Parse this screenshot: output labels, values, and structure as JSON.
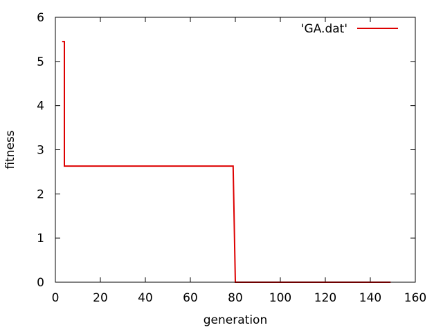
{
  "chart_data": {
    "type": "line",
    "title": "",
    "xlabel": "generation",
    "ylabel": "fitness",
    "xlim": [
      0,
      160
    ],
    "ylim": [
      0,
      6
    ],
    "xticks": [
      0,
      20,
      40,
      60,
      80,
      100,
      120,
      140,
      160
    ],
    "yticks": [
      0,
      1,
      2,
      3,
      4,
      5,
      6
    ],
    "grid": false,
    "legend_position": "top-right",
    "line_style": "steps",
    "series": [
      {
        "name": "'GA.dat'",
        "color": "#dd0000",
        "x": [
          3,
          4,
          4,
          79,
          80,
          149
        ],
        "y": [
          5.45,
          5.45,
          2.63,
          2.63,
          0.0,
          0.0
        ]
      }
    ]
  }
}
